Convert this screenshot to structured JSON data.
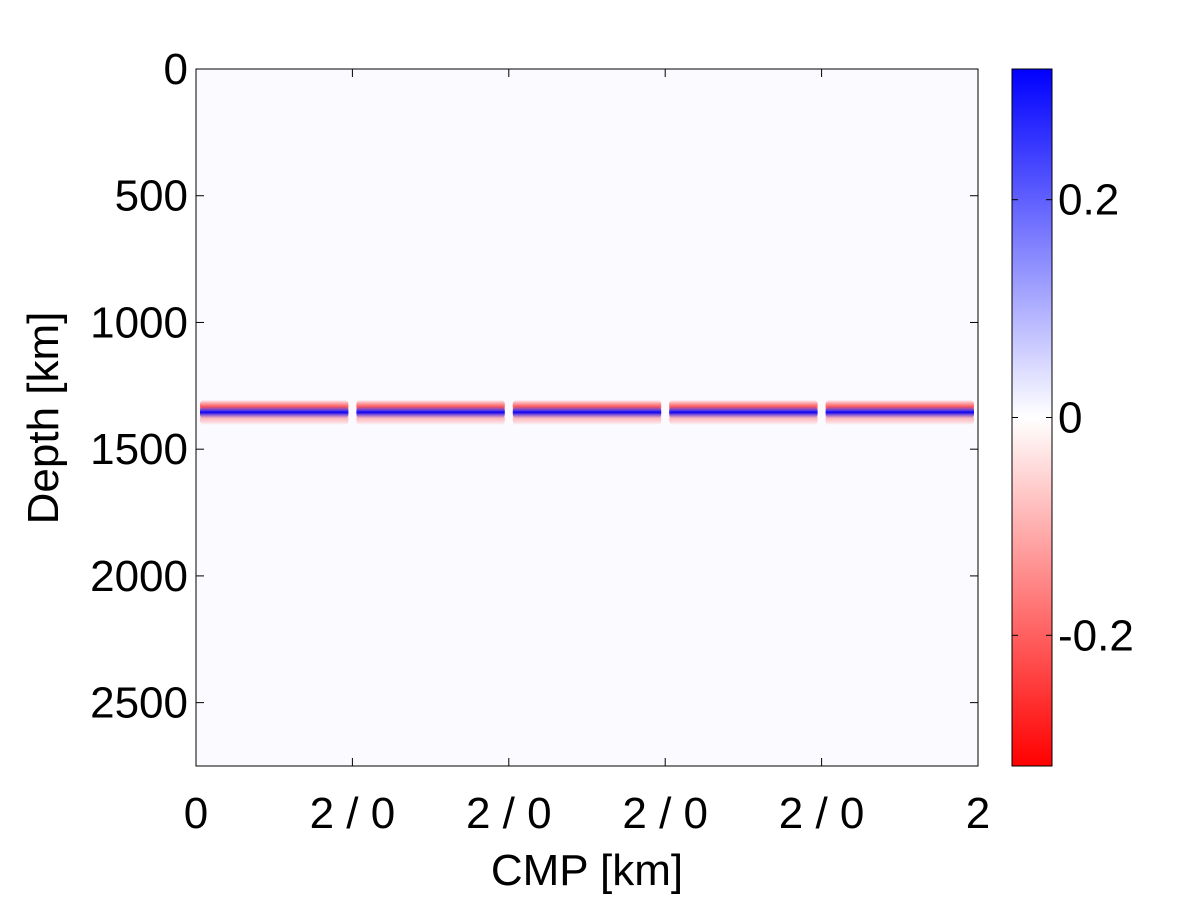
{
  "chart_data": [
    {
      "type": "heatmap",
      "title": "",
      "xlabel": "CMP [km]",
      "ylabel": "Depth [km]",
      "x_tick_labels": [
        "0",
        "2 / 0",
        "2 / 0",
        "2 / 0",
        "2 / 0",
        "2"
      ],
      "y_ticks": [
        0,
        500,
        1000,
        1500,
        2000,
        2500
      ],
      "ylim": [
        0,
        2750
      ],
      "y_direction": "down",
      "panels": 5,
      "panel_range_km": [
        0,
        2
      ],
      "grid": false,
      "background_value": 0,
      "reflector": {
        "depth": 1355,
        "waveform": [
          {
            "depth_offset": -22,
            "value": -0.2
          },
          {
            "depth_offset": 0,
            "value": 0.3
          },
          {
            "depth_offset": 22,
            "value": -0.1
          }
        ]
      }
    },
    {
      "type": "colorbar",
      "colormap": [
        "#ff0000",
        "#ffffff",
        "#0000ff"
      ],
      "range": [
        -0.32,
        0.32
      ],
      "ticks": [
        -0.2,
        0,
        0.2
      ],
      "tick_labels": [
        "-0.2",
        "0",
        "0.2"
      ]
    }
  ]
}
